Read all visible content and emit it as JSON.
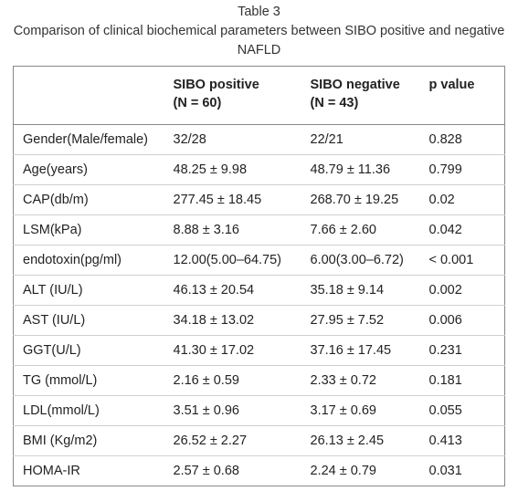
{
  "caption": {
    "title": "Table 3",
    "subtitle": "Comparison of clinical biochemical parameters between SIBO positive and negative NAFLD"
  },
  "table": {
    "headers": [
      {
        "line1": "",
        "line2": ""
      },
      {
        "line1": "SIBO positive",
        "line2": "(N = 60)"
      },
      {
        "line1": "SIBO negative",
        "line2": "(N = 43)"
      },
      {
        "line1": "p value",
        "line2": ""
      }
    ],
    "rows": [
      [
        "Gender(Male/female)",
        "32/28",
        "22/21",
        "0.828"
      ],
      [
        "Age(years)",
        "48.25 ± 9.98",
        "48.79 ± 11.36",
        "0.799"
      ],
      [
        "CAP(db/m)",
        "277.45 ± 18.45",
        "268.70 ± 19.25",
        "0.02"
      ],
      [
        "LSM(kPa)",
        "8.88 ± 3.16",
        "7.66 ± 2.60",
        "0.042"
      ],
      [
        "endotoxin(pg/ml)",
        "12.00(5.00–64.75)",
        "6.00(3.00–6.72)",
        "< 0.001"
      ],
      [
        "ALT (IU/L)",
        "46.13 ± 20.54",
        "35.18 ± 9.14",
        "0.002"
      ],
      [
        "AST (IU/L)",
        "34.18 ± 13.02",
        "27.95 ± 7.52",
        "0.006"
      ],
      [
        "GGT(U/L)",
        "41.30 ± 17.02",
        "37.16 ± 17.45",
        "0.231"
      ],
      [
        "TG (mmol/L)",
        "2.16 ± 0.59",
        "2.33 ± 0.72",
        "0.181"
      ],
      [
        "LDL(mmol/L)",
        "3.51 ± 0.96",
        "3.17 ± 0.69",
        "0.055"
      ],
      [
        "BMI (Kg/m2)",
        "26.52 ± 2.27",
        "26.13 ± 2.45",
        "0.413"
      ],
      [
        "HOMA-IR",
        "2.57 ± 0.68",
        "2.24 ± 0.79",
        "0.031"
      ]
    ]
  }
}
